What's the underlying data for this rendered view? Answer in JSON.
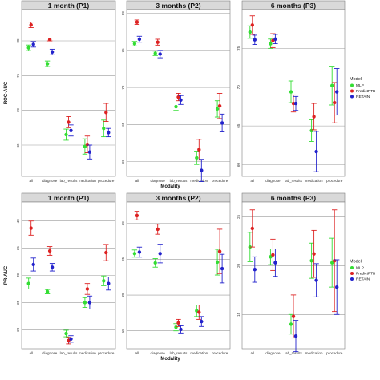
{
  "colors": {
    "MLP": "#33dd33",
    "PredictPTB": "#dd2222",
    "RETAIN": "#2222cc"
  },
  "legend": {
    "title": "Model",
    "entries": [
      "MLP",
      "PredictPTB",
      "RETAIN"
    ]
  },
  "chart_data": [
    {
      "type": "errorbar",
      "metric": "ROC-AUC",
      "ylabel": "ROC-AUC",
      "xlabel": "Modality",
      "categories": [
        "all",
        "diagnose",
        "lab_results",
        "medication",
        "procedure"
      ],
      "panels": [
        {
          "title": "1 month (P1)",
          "ylim": [
            60.5,
            84.5
          ],
          "yticks": [
            65,
            70,
            75,
            80
          ],
          "series": [
            {
              "name": "MLP",
              "values": [
                79.0,
                76.7,
                66.5,
                64.8,
                67.4
              ],
              "err": [
                0.4,
                0.4,
                0.8,
                1.1,
                1.2
              ]
            },
            {
              "name": "PredictPTB",
              "values": [
                82.3,
                80.2,
                68.3,
                65.1,
                69.7
              ],
              "err": [
                0.4,
                0.2,
                0.8,
                1.2,
                1.3
              ]
            },
            {
              "name": "RETAIN",
              "values": [
                79.5,
                78.4,
                67.1,
                64.0,
                66.8
              ],
              "err": [
                0.4,
                0.4,
                0.8,
                1.0,
                0.6
              ]
            }
          ]
        },
        {
          "title": "3 months (P2)",
          "ylim": [
            58.0,
            80.5
          ],
          "yticks": [
            60,
            65,
            70,
            75,
            80
          ],
          "series": [
            {
              "name": "MLP",
              "values": [
                75.9,
                74.6,
                67.4,
                60.5,
                67.1
              ],
              "err": [
                0.3,
                0.3,
                0.5,
                0.9,
                1.1
              ]
            },
            {
              "name": "PredictPTB",
              "values": [
                78.8,
                76.1,
                68.7,
                61.6,
                67.5
              ],
              "err": [
                0.3,
                0.4,
                0.5,
                1.4,
                1.7
              ]
            },
            {
              "name": "RETAIN",
              "values": [
                76.5,
                74.5,
                68.3,
                58.8,
                65.2
              ],
              "err": [
                0.4,
                0.5,
                0.6,
                1.5,
                1.2
              ]
            }
          ]
        },
        {
          "title": "6 months (P3)",
          "ylim": [
            58.5,
            80.0
          ],
          "yticks": [
            60,
            65,
            70,
            75
          ],
          "series": [
            {
              "name": "MLP",
              "values": [
                77.1,
                75.6,
                69.4,
                64.4,
                70.2
              ],
              "err": [
                0.8,
                0.6,
                1.4,
                1.4,
                2.5
              ]
            },
            {
              "name": "PredictPTB",
              "values": [
                78.0,
                76.0,
                67.9,
                66.2,
                68.0
              ],
              "err": [
                1.2,
                0.9,
                1.1,
                1.7,
                2.6
              ]
            },
            {
              "name": "RETAIN",
              "values": [
                76.1,
                76.2,
                67.9,
                61.7,
                69.4
              ],
              "err": [
                0.6,
                0.6,
                0.9,
                2.6,
                3.0
              ]
            }
          ]
        }
      ]
    },
    {
      "type": "errorbar",
      "metric": "PR-AUC",
      "ylabel": "PR-AUC",
      "xlabel": "Modality",
      "categories": [
        "all",
        "diagnose",
        "lab_results",
        "medication",
        "procedure"
      ],
      "panels": [
        {
          "title": "1 month (P1)",
          "ylim": [
            16.5,
            43.5
          ],
          "yticks": [
            20,
            25,
            30,
            35,
            40
          ],
          "series": [
            {
              "name": "MLP",
              "values": [
                28.5,
                27.0,
                19.3,
                25.0,
                29.0
              ],
              "err": [
                1.0,
                0.4,
                0.6,
                0.9,
                0.9
              ]
            },
            {
              "name": "PredictPTB",
              "values": [
                38.7,
                34.5,
                18.0,
                27.5,
                34.2
              ],
              "err": [
                1.3,
                0.8,
                0.6,
                1.0,
                1.5
              ]
            },
            {
              "name": "RETAIN",
              "values": [
                32.0,
                31.5,
                18.3,
                25.0,
                28.5
              ],
              "err": [
                1.2,
                0.7,
                0.6,
                1.2,
                1.2
              ]
            }
          ]
        },
        {
          "title": "3 months (P2)",
          "ylim": [
            12.5,
            33.0
          ],
          "yticks": [
            15,
            20,
            25,
            30
          ],
          "series": [
            {
              "name": "MLP",
              "values": [
                25.8,
                24.5,
                15.5,
                17.8,
                24.6
              ],
              "err": [
                0.5,
                0.6,
                0.5,
                0.8,
                1.8
              ]
            },
            {
              "name": "PredictPTB",
              "values": [
                31.1,
                29.2,
                16.1,
                17.6,
                26.1
              ],
              "err": [
                0.6,
                0.7,
                0.5,
                1.0,
                3.1
              ]
            },
            {
              "name": "RETAIN",
              "values": [
                26.0,
                25.8,
                15.2,
                16.3,
                23.7
              ],
              "err": [
                0.7,
                1.3,
                0.5,
                0.7,
                2.0
              ]
            }
          ]
        },
        {
          "title": "6 months (P3)",
          "ylim": [
            11.5,
            26.5
          ],
          "yticks": [
            15,
            20,
            25
          ],
          "series": [
            {
              "name": "MLP",
              "values": [
                21.9,
                20.9,
                14.0,
                20.5,
                20.3
              ],
              "err": [
                1.5,
                0.8,
                1.0,
                1.8,
                2.5
              ]
            },
            {
              "name": "PredictPTB",
              "values": [
                23.8,
                21.1,
                14.8,
                21.2,
                20.5
              ],
              "err": [
                1.9,
                1.6,
                2.2,
                2.4,
                5.2
              ]
            },
            {
              "name": "RETAIN",
              "values": [
                19.6,
                20.3,
                12.8,
                18.5,
                17.8
              ],
              "err": [
                1.3,
                1.4,
                1.6,
                1.7,
                2.8
              ]
            }
          ]
        }
      ]
    }
  ]
}
